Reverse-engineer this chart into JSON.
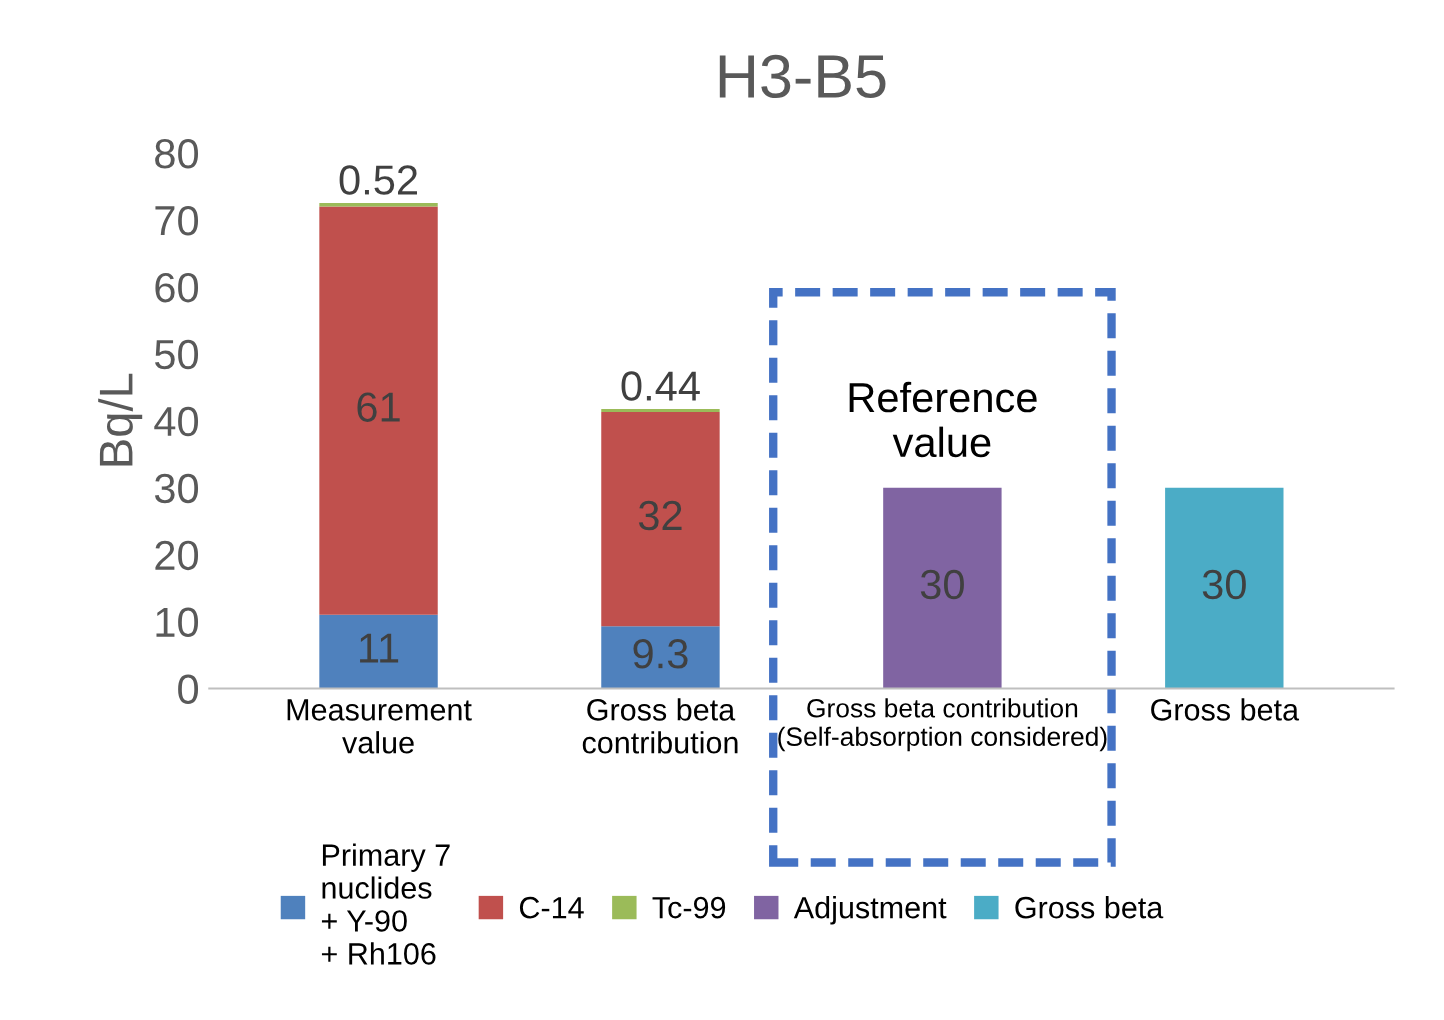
{
  "chart_data": {
    "type": "bar",
    "title": "H3-B5",
    "ylabel": "Bq/L",
    "stacked": true,
    "data_labels": true,
    "categories": [
      "Measurement\nvalue",
      "Gross beta\ncontribution",
      "Gross beta contribution\n(Self-absorption considered)",
      "Gross beta"
    ],
    "series": [
      {
        "name": "Primary 7\nnuclides\n+ Y-90\n+ Rh106",
        "color": "#4f81bd",
        "values": [
          11,
          9.3,
          null,
          null
        ]
      },
      {
        "name": "C-14",
        "color": "#c0504d",
        "values": [
          61,
          32,
          null,
          null
        ]
      },
      {
        "name": "Tc-99",
        "color": "#9bbb59",
        "values": [
          0.52,
          0.44,
          null,
          null
        ]
      },
      {
        "name": "Adjustment",
        "color": "#8064a2",
        "values": [
          null,
          null,
          30,
          null
        ]
      },
      {
        "name": "Gross beta",
        "color": "#4bacc6",
        "values": [
          null,
          null,
          null,
          30
        ]
      }
    ],
    "ylim": [
      0,
      80
    ],
    "yticks": [
      0,
      10,
      20,
      30,
      40,
      50,
      60,
      70,
      80
    ],
    "grid": false,
    "legend": "bottom",
    "annotations": [
      {
        "text": "Reference\nvalue",
        "x": "Gross beta contribution\n(Self-absorption considered)",
        "y": 30
      }
    ]
  }
}
